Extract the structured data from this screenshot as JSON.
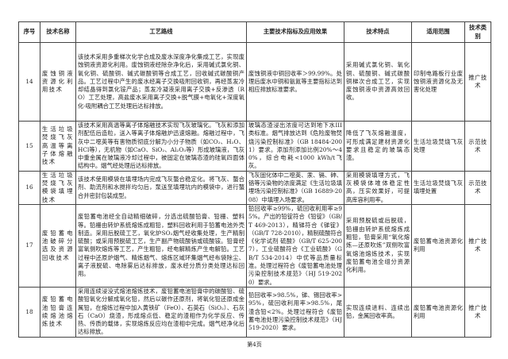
{
  "headers": [
    "序号",
    "技术名称",
    "工艺路线",
    "主要技术指标及应用效果",
    "技术特点",
    "适用范围",
    "技术类别"
  ],
  "rows": [
    {
      "no": "14",
      "name": "废蚀铜液资源化利用技术",
      "route": "该技术采用多重梯次化学合成及废水深度净化集成工艺，实现废蚀铜液资源化利用。废蚀铜液经除杂净化后，采用碱式氯化铜、氧化铜、硫酸铜、碱式碳酸铜等合成工艺，回收碱式碳酸铜产品。工艺过程中产生的废水经离子交换吸附回收铜，再经蒸发冷却结晶得到氯化铵产品；蒸发冷凝液采用离子交换+反渗透（RO）工艺处理，高盐废水采用离子交换+脱气膜+电氧化+深度氧化-吸附耦合工艺处理后达标排放。",
      "indicators": "废蚀铜液中铜回收率＞99.99%。处理后废水中铜和氨氮等主要指标达到相应排放标准要求。",
      "features": "采用碱式氯化铜、氧化铜、硫酸铜、碱式碳酸铜梯次合成工艺，实现废蚀铜液中资源高效回收。",
      "scope": "印制电路板行业废蚀铜液资源化及无害化处理",
      "category": "推广技术"
    },
    {
      "no": "15",
      "name": "生活垃圾焚烧飞灰高温等离子体熔融技术",
      "route": "该技术采用高温等离子体熔融技术实现飞灰玻璃化。飞灰和添加剂配伍后造粒，送入等离子体熔融炉迅速熔融。熔融过程中，飞灰中二噁英等有害物质彻底分解为小分子物质（如CO₂、H₂O、HCl等），无机物（如CaO、SiO₂、Al₂O₃等）形成玻璃液，飞灰中重金属在玻璃液冷却过程中，被固定在玻璃态渣的硅氧四面体结构中。烟气经处理后达标排放。",
      "indicators": "玻璃态渣浸出浓度可达到地下水III类标准。烟气排放达到《危险废物焚烧污染控制标准》（GB 18484-2001）要求。添加剂添加比例20%～40%，综合电耗<1000 kWh/t飞灰。",
      "features": "降低了飞灰熔融温度，可形成满足建材资源化要求且稳定的玻璃态渣。",
      "scope": "生活垃圾焚烧飞灰处理",
      "category": "示范技术"
    },
    {
      "no": "16",
      "name": "生活垃圾焚烧飞灰模袋填埋技术",
      "route": "该技术使用模袋在填埋场内完成飞灰螯合稳定化。将飞灰、螯合剂、助流剂和水搅拌均匀后，泵送至填埋坑内的模袋中，进行螯合并密封包装成型。",
      "indicators": "飞灰固化体中二噁英、汞、镉、砷、铬等污染物的浓度满足《生活垃圾填埋场污染控制标准》（GB 16889-2008）中填埋入场要求。",
      "features": "采用模袋填埋方式，飞灰模袋体堆体稳定性高，压实效果好，可提高库容利用率。",
      "scope": "生活垃圾焚烧飞灰填埋处置",
      "category": "示范技术"
    },
    {
      "no": "17",
      "name": "废铅蓄电池破碎分选及资源回收技术",
      "route": "废铅蓄电池经全自动精细破碎，分选出硫酸铅膏、铅栅、塑料等。铅栅由转炉系统熔炼成粗铅，塑料回收利用于铅蓄电池外壳制造。采用后脱硫工艺，氧化炉SO₂烟气经收集处理，生产精制硫酸；或采用预脱硫工艺，生产副产物硫酸钠或硫酸铵。铅膏经富氧侧吹熔炼等工艺，产生粗铅，经电解精炼产生电解铅。工艺过程中还原炉烟气、精炼烟气、熔炼区域环集烟气经布袋除尘、离子液脱硫、电除雾后达标排放，废水经分质分类处理达标回用。",
      "indicators": "铅回收率≥99%，硫回收利用率≥95%。产出的铅锭符合《铅锭》（GB/T 469-2013），精锑符合《锑锭》（GB/T 728-2010），精制硫酸符合《化学试剂 硫酸》（GB/T 625-2007），工业硫酸符合《工业硫酸》（GB/T 534-2014）中优等品质量标准。处理过程符合《废铅蓄电池处理污染控制技术规范》（HJ 519-2020）要求。",
      "features": "采用预脱硫或后脱硫，铅栅由转炉系统熔炼成粗铅，铅膏采用“氧化熔炼—还原吹炼”双侧吹富氧熔池熔炼技术，实现废铅蓄电池全组分资源化利用。",
      "scope": "废铅蓄电池资源化利用",
      "category": "推广技术"
    },
    {
      "no": "18",
      "name": "废铅蓄电池铅膏连续熔池熔炼技术",
      "route": "采用连续浸没式熔池熔炼技术，废铅蓄电池铅膏中的碳酸铅、硫酸铅氧化分解成氧化铅，然后以碳作还原剂，将氧化铅还原成金属铅，在熔炼过程中加入黄铁矿（FeO）、石英石（SiO₂）、石灰石（CaO）烧渣，形成熔点低、稳定的渣相作为化学反应、传热、传质的载体，实现熔炼反应均在渣相中完成。烟气经净化后达标排放。",
      "indicators": "铅回收率>98.5%，锑、锡回收率>95%，硫回收利用率>98.5%，尾渣含铅<2%。处理过程符合《废铅蓄电池处理污染控制技术规范》（HJ 519-2020）要求。",
      "features": "实现连续进料、连续出铅，金属回收率高。",
      "scope": "废铅蓄电池资源化利用",
      "category": "推广技术"
    }
  ],
  "page_number": "第4页"
}
